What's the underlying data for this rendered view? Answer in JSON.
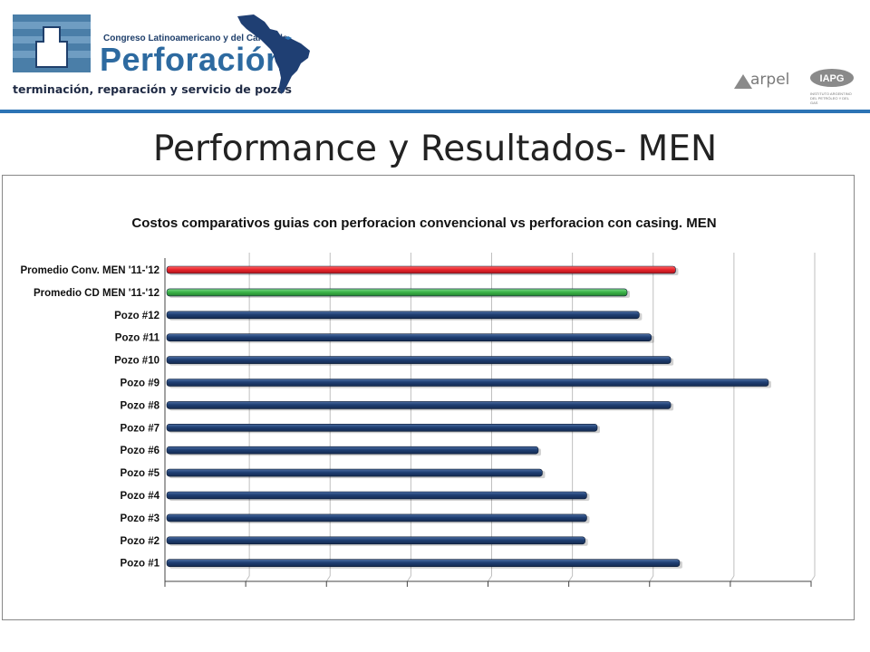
{
  "header": {
    "brand_sub": "Congreso Latinoamericano y del Caribe de",
    "brand_main": "Perforación",
    "brand_tag": "terminación, reparación y servicio de pozos",
    "partner1": "arpel",
    "partner2": "IAPG",
    "partner2_sub": "INSTITUTO ARGENTINO DEL PETRÓLEO Y DEL GAS"
  },
  "slide": {
    "title": "Performance y Resultados- MEN"
  },
  "colors": {
    "accent": "#2c74b5",
    "bar_default": "#1f3f73",
    "bar_conv": "#e8262d",
    "bar_cd": "#3cb54a"
  },
  "chart_data": {
    "type": "bar",
    "orientation": "horizontal",
    "title": "Costos comparativos guias con perforacion convencional vs perforacion con casing. MEN",
    "xlabel": "",
    "ylabel": "",
    "x_ticks_labeled": false,
    "grid": true,
    "categories": [
      "Promedio Conv. MEN '11-'12",
      "Promedio CD MEN '11-'12",
      "Pozo #12",
      "Pozo #11",
      "Pozo #10",
      "Pozo #9",
      "Pozo #8",
      "Pozo #7",
      "Pozo #6",
      "Pozo #5",
      "Pozo #4",
      "Pozo #3",
      "Pozo #2",
      "Pozo #1"
    ],
    "values": [
      6.3,
      5.7,
      5.85,
      6.0,
      6.24,
      7.45,
      6.24,
      5.33,
      4.6,
      4.65,
      5.2,
      5.2,
      5.18,
      6.35
    ],
    "bar_colors": [
      "#e8262d",
      "#3cb54a",
      "#1f3f73",
      "#1f3f73",
      "#1f3f73",
      "#1f3f73",
      "#1f3f73",
      "#1f3f73",
      "#1f3f73",
      "#1f3f73",
      "#1f3f73",
      "#1f3f73",
      "#1f3f73",
      "#1f3f73"
    ],
    "xlim": [
      0,
      8
    ]
  }
}
